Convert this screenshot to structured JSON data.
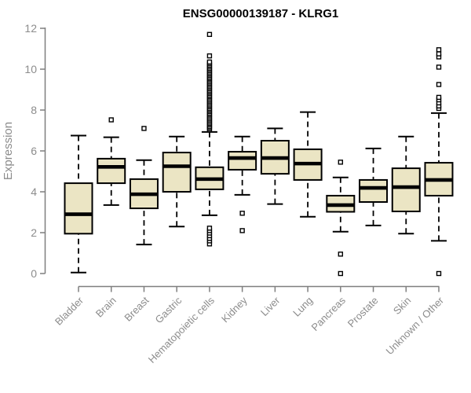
{
  "title": "ENSG00000139187 - KLRG1",
  "y_axis": {
    "label": "Expression",
    "ticks": [
      0,
      2,
      4,
      6,
      8,
      10,
      12
    ],
    "min": 0,
    "max": 12
  },
  "colors": {
    "box_fill": "#ebe5c4",
    "box_stroke": "#000000",
    "median": "#000000",
    "whisker": "#000000",
    "axis": "#7f7f7f",
    "tick_text": "#8c8c8c",
    "title": "#000000",
    "outlier_fill": "#ffffff",
    "background": "#ffffff"
  },
  "chart_data": {
    "type": "boxplot",
    "title": "ENSG00000139187 - KLRG1",
    "xlabel": "",
    "ylabel": "Expression",
    "ylim": [
      0,
      12
    ],
    "yticks": [
      0,
      2,
      4,
      6,
      8,
      10,
      12
    ],
    "grid": false,
    "legend": false,
    "categories": [
      "Bladder",
      "Brain",
      "Breast",
      "Gastric",
      "Hematopoietic cells",
      "Kidney",
      "Liver",
      "Lung",
      "Pancreas",
      "Prostate",
      "Skin",
      "Unknown / Other"
    ],
    "series": [
      {
        "name": "Bladder",
        "low": 0.05,
        "q1": 1.95,
        "median": 2.9,
        "q3": 4.42,
        "high": 6.75,
        "outliers": []
      },
      {
        "name": "Brain",
        "low": 3.35,
        "q1": 4.42,
        "median": 5.22,
        "q3": 5.62,
        "high": 6.67,
        "outliers": [
          7.52
        ]
      },
      {
        "name": "Breast",
        "low": 1.42,
        "q1": 3.19,
        "median": 3.88,
        "q3": 4.62,
        "high": 5.55,
        "outliers": [
          7.1
        ]
      },
      {
        "name": "Gastric",
        "low": 2.3,
        "q1": 4.0,
        "median": 5.25,
        "q3": 5.92,
        "high": 6.7,
        "outliers": []
      },
      {
        "name": "Hematopoietic cells",
        "low": 2.85,
        "q1": 4.12,
        "median": 4.62,
        "q3": 5.2,
        "high": 6.93,
        "outliers": [
          1.45,
          1.6,
          1.72,
          1.85,
          1.98,
          2.1,
          2.22,
          7.05,
          7.12,
          7.19,
          7.27,
          7.34,
          7.41,
          7.49,
          7.56,
          7.63,
          7.71,
          7.78,
          7.85,
          7.93,
          8.0,
          8.07,
          8.15,
          8.22,
          8.29,
          8.37,
          8.44,
          8.51,
          8.59,
          8.66,
          8.73,
          8.81,
          8.88,
          8.95,
          9.03,
          9.1,
          9.17,
          9.25,
          9.32,
          9.39,
          9.47,
          9.54,
          9.61,
          9.69,
          9.76,
          9.83,
          9.91,
          9.98,
          10.05,
          10.13,
          10.2,
          10.28,
          10.35,
          10.65,
          11.7
        ]
      },
      {
        "name": "Kidney",
        "low": 3.85,
        "q1": 5.08,
        "median": 5.65,
        "q3": 5.96,
        "high": 6.7,
        "outliers": [
          2.95,
          2.1
        ]
      },
      {
        "name": "Liver",
        "low": 3.4,
        "q1": 4.88,
        "median": 5.65,
        "q3": 6.5,
        "high": 7.1,
        "outliers": []
      },
      {
        "name": "Lung",
        "low": 2.78,
        "q1": 4.58,
        "median": 5.38,
        "q3": 6.08,
        "high": 7.9,
        "outliers": []
      },
      {
        "name": "Pancreas",
        "low": 2.05,
        "q1": 3.02,
        "median": 3.35,
        "q3": 3.81,
        "high": 4.7,
        "outliers": [
          5.45,
          0.95,
          0.0
        ]
      },
      {
        "name": "Prostate",
        "low": 2.35,
        "q1": 3.5,
        "median": 4.19,
        "q3": 4.58,
        "high": 6.12,
        "outliers": []
      },
      {
        "name": "Skin",
        "low": 1.95,
        "q1": 3.04,
        "median": 4.23,
        "q3": 5.15,
        "high": 6.7,
        "outliers": []
      },
      {
        "name": "Unknown / Other",
        "low": 1.6,
        "q1": 3.81,
        "median": 4.58,
        "q3": 5.42,
        "high": 7.85,
        "outliers": [
          0.0,
          8.08,
          8.2,
          8.35,
          8.5,
          8.62,
          9.25,
          10.1,
          10.6,
          10.75,
          10.95
        ]
      }
    ]
  }
}
